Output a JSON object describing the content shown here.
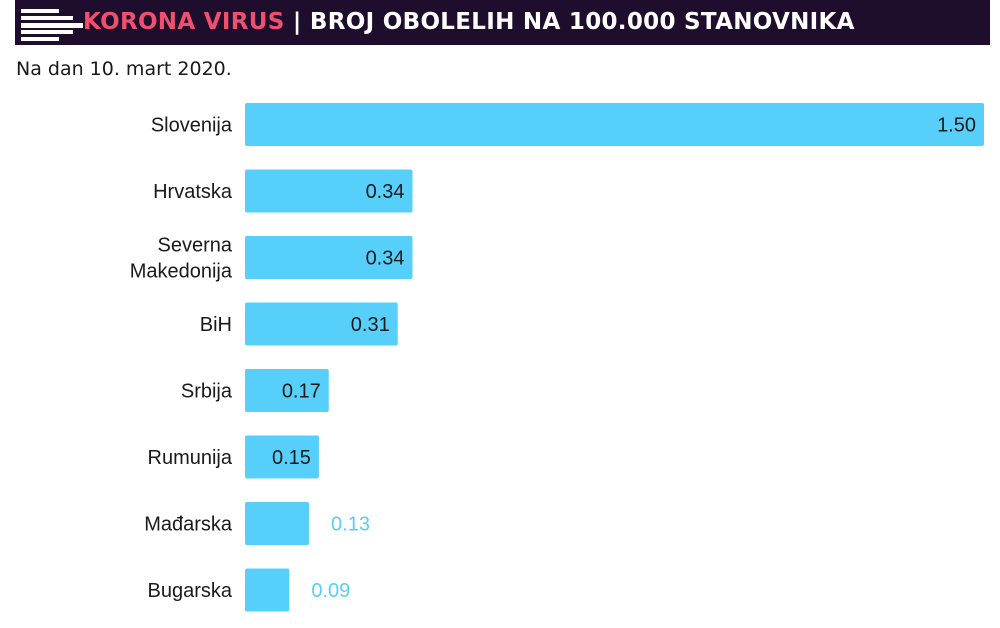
{
  "header": {
    "accent_title": "KORONA VIRUS",
    "separator": "|",
    "main_title": "BROJ OBOLELIH NA 100.000 STANOVNIKA",
    "subtitle": "Na dan 10. mart 2020."
  },
  "colors": {
    "banner_bg": "#1e0d2c",
    "accent": "#f0506e",
    "bar": "#56d0fb",
    "label_inside": "#1a1a1a",
    "label_outside": "#56d0fb"
  },
  "chart_data": {
    "type": "bar",
    "orientation": "horizontal",
    "title": "BROJ OBOLELIH NA 100.000 STANOVNIKA",
    "xlabel": "",
    "ylabel": "",
    "grid": false,
    "legend": "none",
    "xlim": [
      0,
      1.5
    ],
    "categories": [
      [
        "Slovenija"
      ],
      [
        "Hrvatska"
      ],
      [
        "Severna",
        "Makedonija"
      ],
      [
        "BiH"
      ],
      [
        "Srbija"
      ],
      [
        "Rumunija"
      ],
      [
        "Mađarska"
      ],
      [
        "Bugarska"
      ]
    ],
    "values": [
      1.5,
      0.34,
      0.34,
      0.31,
      0.17,
      0.15,
      0.13,
      0.09
    ],
    "value_labels": [
      "1.50",
      "0.34",
      "0.34",
      "0.31",
      "0.17",
      "0.15",
      "0.13",
      "0.09"
    ]
  }
}
